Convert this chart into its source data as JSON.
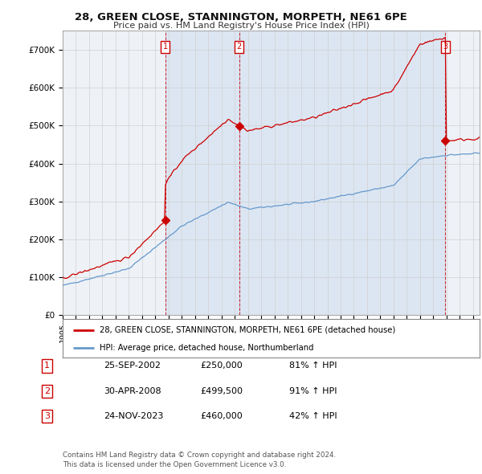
{
  "title": "28, GREEN CLOSE, STANNINGTON, MORPETH, NE61 6PE",
  "subtitle": "Price paid vs. HM Land Registry's House Price Index (HPI)",
  "ylim": [
    0,
    750000
  ],
  "yticks": [
    0,
    100000,
    200000,
    300000,
    400000,
    500000,
    600000,
    700000
  ],
  "ytick_labels": [
    "£0",
    "£100K",
    "£200K",
    "£300K",
    "£400K",
    "£500K",
    "£600K",
    "£700K"
  ],
  "background_color": "#ffffff",
  "plot_bg_color": "#eef2f7",
  "red_line_color": "#cc0000",
  "blue_line_color": "#6699cc",
  "grid_color": "#d0d0d0",
  "xmin": 1995.0,
  "xmax": 2026.5,
  "sale_years": [
    2002.75,
    2008.33,
    2023.92
  ],
  "sale_prices": [
    250000,
    499500,
    460000
  ],
  "sale_labels": [
    "1",
    "2",
    "3"
  ],
  "legend_entries": [
    "28, GREEN CLOSE, STANNINGTON, MORPETH, NE61 6PE (detached house)",
    "HPI: Average price, detached house, Northumberland"
  ],
  "table_data": [
    [
      "1",
      "25-SEP-2002",
      "£250,000",
      "81% ↑ HPI"
    ],
    [
      "2",
      "30-APR-2008",
      "£499,500",
      "91% ↑ HPI"
    ],
    [
      "3",
      "24-NOV-2023",
      "£460,000",
      "42% ↑ HPI"
    ]
  ],
  "footer": "Contains HM Land Registry data © Crown copyright and database right 2024.\nThis data is licensed under the Open Government Licence v3.0."
}
